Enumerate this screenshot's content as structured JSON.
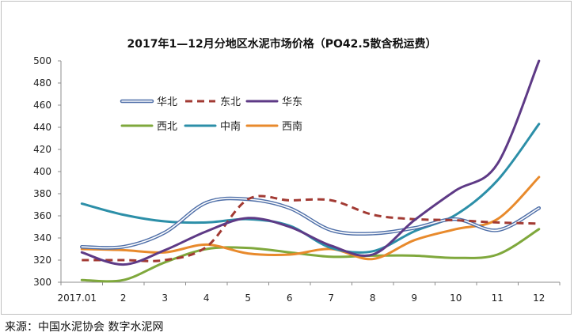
{
  "chart_data": {
    "type": "line",
    "title": "2017年1—12月分地区水泥市场价格（PO42.5散含税运费）",
    "xlabel": "",
    "ylabel": "",
    "categories": [
      "2017.01",
      "2",
      "3",
      "4",
      "5",
      "6",
      "7",
      "8",
      "9",
      "10",
      "11",
      "12"
    ],
    "ylim": [
      300,
      500
    ],
    "yticks": [
      300,
      320,
      340,
      360,
      380,
      400,
      420,
      440,
      460,
      480,
      500
    ],
    "grid": false,
    "legend_placement": "upper-left-inside",
    "series": [
      {
        "name": "华北",
        "style": "double",
        "color": "#4f6fa8",
        "values": [
          332,
          332,
          345,
          372,
          375,
          367,
          347,
          344,
          349,
          357,
          347,
          367
        ]
      },
      {
        "name": "东北",
        "style": "dashed",
        "color": "#a23a33",
        "values": [
          320,
          320,
          320,
          332,
          375,
          374,
          374,
          361,
          357,
          356,
          354,
          353
        ]
      },
      {
        "name": "华东",
        "style": "solid",
        "color": "#5e3a86",
        "values": [
          327,
          316,
          329,
          346,
          358,
          350,
          333,
          325,
          356,
          383,
          407,
          500
        ]
      },
      {
        "name": "西北",
        "style": "solid",
        "color": "#7fa83c",
        "values": [
          302,
          302,
          318,
          330,
          331,
          327,
          323,
          324,
          324,
          322,
          325,
          348
        ]
      },
      {
        "name": "中南",
        "style": "solid",
        "color": "#2c8fa8",
        "values": [
          371,
          361,
          355,
          354,
          357,
          351,
          331,
          328,
          346,
          361,
          392,
          443
        ]
      },
      {
        "name": "西南",
        "style": "solid",
        "color": "#e88a2c",
        "values": [
          330,
          329,
          327,
          334,
          326,
          325,
          330,
          321,
          338,
          348,
          357,
          395
        ]
      }
    ]
  },
  "source_text": "来源：中国水泥协会  数字水泥网"
}
